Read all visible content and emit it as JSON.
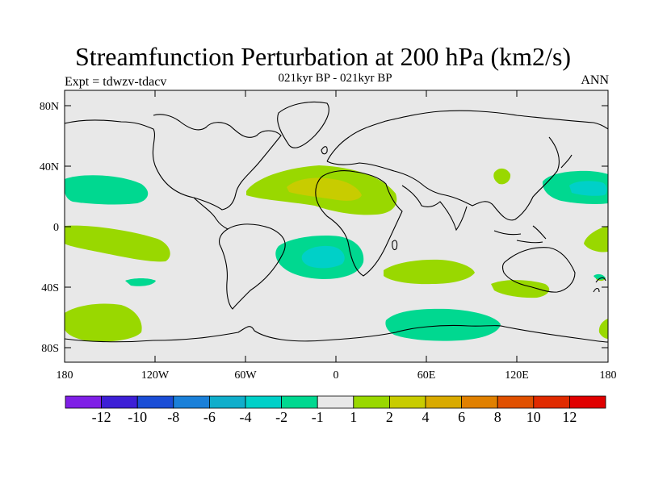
{
  "title": "Streamfunction Perturbation at 200 hPa (km2/s)",
  "subtitle": "021kyr BP - 021kyr BP",
  "left_label": "Expt = tdwzv-tdacv",
  "right_label": "ANN",
  "chart_data": {
    "type": "contour-map",
    "title": "Streamfunction Perturbation at 200 hPa (km2/s)",
    "subtitle": "021kyr BP - 021kyr BP",
    "experiment": "Expt = tdwzv-tdacv",
    "season": "ANN",
    "x_ticks": [
      "180",
      "120W",
      "60W",
      "0",
      "60E",
      "120E",
      "180"
    ],
    "y_ticks": [
      "80N",
      "40N",
      "0",
      "40S",
      "80S"
    ],
    "colorbar": {
      "labels": [
        "-12",
        "-10",
        "-8",
        "-6",
        "-4",
        "-2",
        "-1",
        "1",
        "2",
        "4",
        "6",
        "8",
        "10",
        "12"
      ],
      "colors": [
        "#7f1fe6",
        "#3d1fd6",
        "#1a4dd6",
        "#1a80d9",
        "#10aecb",
        "#00d0c8",
        "#00d890",
        "#e8e8e8",
        "#99d800",
        "#c8cc00",
        "#d9aa00",
        "#e08000",
        "#e05000",
        "#e02a00",
        "#e00000"
      ]
    },
    "land_color": "#e8e8e8"
  }
}
